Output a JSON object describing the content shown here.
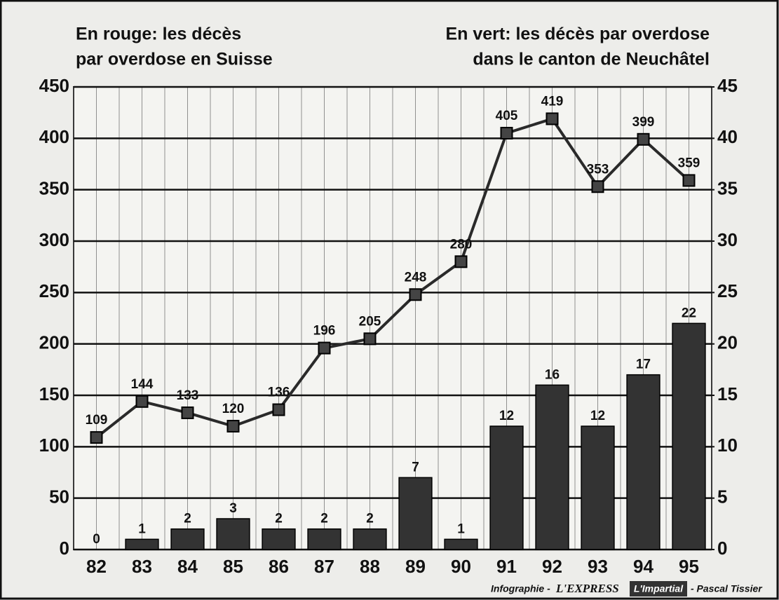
{
  "chart_data": {
    "type": "bar-line",
    "title_left": [
      "En rouge: les décès",
      "par overdose en Suisse"
    ],
    "title_right": [
      "En vert: les décès par overdose",
      "dans le canton de  Neuchâtel"
    ],
    "credit": [
      "Infographie - ",
      "L'EXPRESS",
      "L'Impartial",
      "- Pascal Tissier"
    ],
    "categories": [
      "82",
      "83",
      "84",
      "85",
      "86",
      "87",
      "88",
      "89",
      "90",
      "91",
      "92",
      "93",
      "94",
      "95"
    ],
    "series": [
      {
        "type": "line",
        "color": "#2a2a2a",
        "axis": "y",
        "values": [
          109,
          144,
          133,
          120,
          136,
          196,
          205,
          248,
          280,
          405,
          419,
          353,
          399,
          359
        ]
      },
      {
        "type": "bar",
        "color": "#333333",
        "axis": "y2",
        "values": [
          0,
          1,
          2,
          3,
          2,
          2,
          2,
          7,
          1,
          12,
          16,
          12,
          17,
          22
        ]
      }
    ],
    "ylim": [
      0,
      450
    ],
    "yticks": [
      0,
      50,
      100,
      150,
      200,
      250,
      300,
      350,
      400,
      450
    ],
    "y2lim": [
      0,
      45
    ],
    "y2ticks": [
      0,
      5,
      10,
      15,
      20,
      25,
      30,
      35,
      40,
      45
    ],
    "grid": true
  }
}
